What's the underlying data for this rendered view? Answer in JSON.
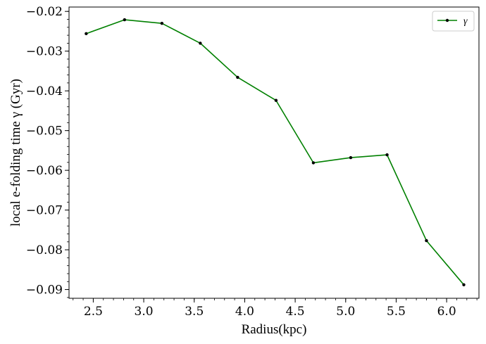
{
  "chart_data": {
    "type": "line",
    "xlabel": "Radius(kpc)",
    "ylabel": "local e-folding time γ (Gyr)",
    "xlim": [
      2.26,
      6.32
    ],
    "ylim": [
      -0.0922,
      -0.0189
    ],
    "xticks": [
      2.5,
      3.0,
      3.5,
      4.0,
      4.5,
      5.0,
      5.5,
      6.0
    ],
    "xtick_labels": [
      "2.5",
      "3.0",
      "3.5",
      "4.0",
      "4.5",
      "5.0",
      "5.5",
      "6.0"
    ],
    "yticks": [
      -0.02,
      -0.03,
      -0.04,
      -0.05,
      -0.06,
      -0.07,
      -0.08,
      -0.09
    ],
    "ytick_labels": [
      "−0.02",
      "−0.03",
      "−0.04",
      "−0.05",
      "−0.06",
      "−0.07",
      "−0.08",
      "−0.09"
    ],
    "grid": false,
    "legend_position": "top-right",
    "series": [
      {
        "name": "γ",
        "color": "#008000",
        "marker_color": "#000000",
        "x": [
          2.43,
          2.81,
          3.18,
          3.56,
          3.93,
          4.31,
          4.68,
          5.05,
          5.41,
          5.8,
          6.17
        ],
        "y": [
          -0.0256,
          -0.0221,
          -0.023,
          -0.028,
          -0.0366,
          -0.0424,
          -0.0581,
          -0.0568,
          -0.0561,
          -0.0777,
          -0.0888
        ]
      }
    ]
  }
}
